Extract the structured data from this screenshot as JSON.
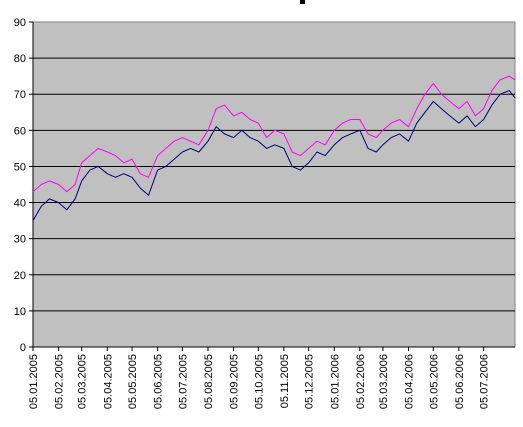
{
  "chart_data": {
    "type": "line",
    "title": "",
    "xlabel": "",
    "ylabel": "",
    "ylim": [
      0,
      90
    ],
    "yticks": [
      0,
      10,
      20,
      30,
      40,
      50,
      60,
      70,
      80,
      90
    ],
    "grid": "horizontal",
    "legend": "none",
    "plot_background": "#c0c0c0",
    "x_start": "2005-01-05",
    "x_end": "2006-08-12",
    "x_tick_labels": [
      "05.01.2005",
      "05.02.2005",
      "05.03.2005",
      "05.04.2005",
      "05.05.2005",
      "05.06.2005",
      "05.07.2005",
      "05.08.2005",
      "05.09.2005",
      "05.10.2005",
      "05.11.2005",
      "05.12.2005",
      "05.01.2006",
      "05.02.2006",
      "05.03.2006",
      "05.04.2006",
      "05.05.2006",
      "05.06.2006",
      "05.07.2006"
    ],
    "x_tick_dates": [
      "2005-01-05",
      "2005-02-05",
      "2005-03-05",
      "2005-04-05",
      "2005-05-05",
      "2005-06-05",
      "2005-07-05",
      "2005-08-05",
      "2005-09-05",
      "2005-10-05",
      "2005-11-05",
      "2005-12-05",
      "2006-01-05",
      "2006-02-05",
      "2006-03-05",
      "2006-04-05",
      "2006-05-05",
      "2006-06-05",
      "2006-07-05"
    ],
    "series": [
      {
        "color": "#ff00ff",
        "x": [
          "2005-01-05",
          "2005-01-15",
          "2005-01-25",
          "2005-02-05",
          "2005-02-15",
          "2005-02-25",
          "2005-03-05",
          "2005-03-15",
          "2005-03-25",
          "2005-04-05",
          "2005-04-15",
          "2005-04-25",
          "2005-05-05",
          "2005-05-15",
          "2005-05-25",
          "2005-06-05",
          "2005-06-15",
          "2005-06-25",
          "2005-07-05",
          "2005-07-15",
          "2005-07-25",
          "2005-08-05",
          "2005-08-15",
          "2005-08-25",
          "2005-09-05",
          "2005-09-15",
          "2005-09-25",
          "2005-10-05",
          "2005-10-15",
          "2005-10-25",
          "2005-11-05",
          "2005-11-15",
          "2005-11-25",
          "2005-12-05",
          "2005-12-15",
          "2005-12-25",
          "2006-01-05",
          "2006-01-15",
          "2006-01-25",
          "2006-02-05",
          "2006-02-15",
          "2006-02-25",
          "2006-03-05",
          "2006-03-15",
          "2006-03-25",
          "2006-04-05",
          "2006-04-15",
          "2006-04-25",
          "2006-05-05",
          "2006-05-15",
          "2006-05-25",
          "2006-06-05",
          "2006-06-15",
          "2006-06-25",
          "2006-07-05",
          "2006-07-15",
          "2006-07-25",
          "2006-08-05",
          "2006-08-12"
        ],
        "values": [
          43,
          45,
          46,
          45,
          43,
          45,
          51,
          53,
          55,
          54,
          53,
          51,
          52,
          48,
          47,
          53,
          55,
          57,
          58,
          57,
          56,
          60,
          66,
          67,
          64,
          65,
          63,
          62,
          58,
          60,
          59,
          54,
          53,
          55,
          57,
          56,
          60,
          62,
          63,
          63,
          59,
          58,
          60,
          62,
          63,
          61,
          66,
          70,
          73,
          70,
          68,
          66,
          68,
          64,
          66,
          71,
          74,
          75,
          74
        ]
      },
      {
        "color": "#000080",
        "x": [
          "2005-01-05",
          "2005-01-15",
          "2005-01-25",
          "2005-02-05",
          "2005-02-15",
          "2005-02-25",
          "2005-03-05",
          "2005-03-15",
          "2005-03-25",
          "2005-04-05",
          "2005-04-15",
          "2005-04-25",
          "2005-05-05",
          "2005-05-15",
          "2005-05-25",
          "2005-06-05",
          "2005-06-15",
          "2005-06-25",
          "2005-07-05",
          "2005-07-15",
          "2005-07-25",
          "2005-08-05",
          "2005-08-15",
          "2005-08-25",
          "2005-09-05",
          "2005-09-15",
          "2005-09-25",
          "2005-10-05",
          "2005-10-15",
          "2005-10-25",
          "2005-11-05",
          "2005-11-15",
          "2005-11-25",
          "2005-12-05",
          "2005-12-15",
          "2005-12-25",
          "2006-01-05",
          "2006-01-15",
          "2006-01-25",
          "2006-02-05",
          "2006-02-15",
          "2006-02-25",
          "2006-03-05",
          "2006-03-15",
          "2006-03-25",
          "2006-04-05",
          "2006-04-15",
          "2006-04-25",
          "2006-05-05",
          "2006-05-15",
          "2006-05-25",
          "2006-06-05",
          "2006-06-15",
          "2006-06-25",
          "2006-07-05",
          "2006-07-15",
          "2006-07-25",
          "2006-08-05",
          "2006-08-12"
        ],
        "values": [
          35,
          39,
          41,
          40,
          38,
          41,
          46,
          49,
          50,
          48,
          47,
          48,
          47,
          44,
          42,
          49,
          50,
          52,
          54,
          55,
          54,
          57,
          61,
          59,
          58,
          60,
          58,
          57,
          55,
          56,
          55,
          50,
          49,
          51,
          54,
          53,
          56,
          58,
          59,
          60,
          55,
          54,
          56,
          58,
          59,
          57,
          62,
          65,
          68,
          66,
          64,
          62,
          64,
          61,
          63,
          67,
          70,
          71,
          69
        ]
      }
    ]
  }
}
